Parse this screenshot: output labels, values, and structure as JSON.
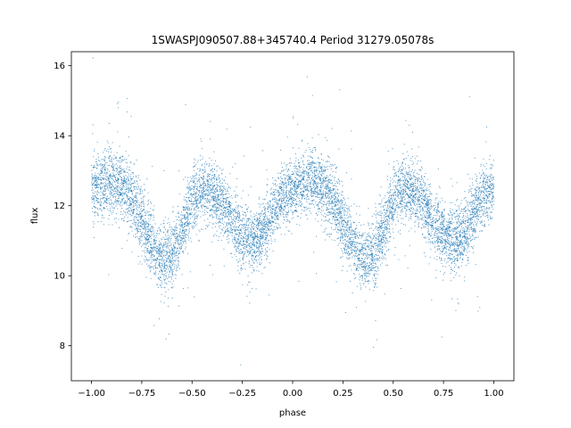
{
  "chart_data": {
    "type": "scatter",
    "title": "1SWASPJ090507.88+345740.4 Period 31279.05078s",
    "xlabel": "phase",
    "ylabel": "flux",
    "xlim": [
      -1.1,
      1.1
    ],
    "ylim": [
      7.0,
      16.4
    ],
    "xticks": [
      -1.0,
      -0.75,
      -0.5,
      -0.25,
      0.0,
      0.25,
      0.5,
      0.75,
      1.0
    ],
    "xtick_labels": [
      "−1.00",
      "−0.75",
      "−0.50",
      "−0.25",
      "0.00",
      "0.25",
      "0.50",
      "0.75",
      "1.00"
    ],
    "yticks": [
      8,
      10,
      12,
      14,
      16
    ],
    "ytick_labels": [
      "8",
      "10",
      "12",
      "14",
      "16"
    ],
    "grid": false,
    "point_color": "#1f77b4",
    "series": [
      {
        "phase": [
          -1.0,
          -0.95,
          -0.9,
          -0.85,
          -0.8,
          -0.75,
          -0.7,
          -0.65,
          -0.6,
          -0.55,
          -0.5,
          -0.45,
          -0.4,
          -0.35,
          -0.3,
          -0.25,
          -0.2,
          -0.15,
          -0.1,
          -0.05,
          0.0,
          0.05,
          0.1,
          0.15,
          0.2,
          0.25,
          0.3,
          0.35,
          0.4,
          0.45,
          0.5,
          0.55,
          0.6,
          0.65,
          0.7,
          0.75,
          0.8,
          0.85,
          0.9,
          0.95,
          1.0
        ],
        "flux_mean": [
          12.5,
          12.6,
          12.65,
          12.6,
          12.2,
          11.5,
          10.9,
          10.5,
          10.6,
          11.3,
          12.1,
          12.5,
          12.4,
          12.1,
          11.5,
          11.1,
          11.0,
          11.2,
          11.8,
          12.3,
          12.5,
          12.65,
          12.7,
          12.6,
          12.2,
          11.5,
          10.9,
          10.5,
          10.6,
          11.3,
          12.1,
          12.5,
          12.4,
          12.1,
          11.5,
          11.1,
          11.0,
          11.2,
          11.8,
          12.3,
          12.5
        ],
        "scatter_sigma": 0.45,
        "n_points": 9000
      }
    ]
  }
}
